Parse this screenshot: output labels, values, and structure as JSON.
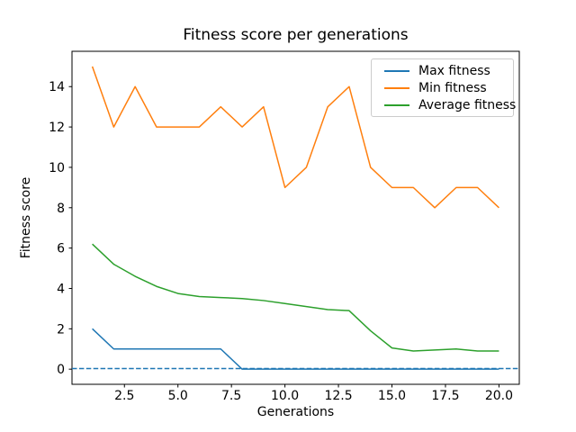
{
  "chart_data": {
    "type": "line",
    "title": "Fitness score per generations",
    "xlabel": "Generations",
    "ylabel": "Fitness score",
    "x": [
      1,
      2,
      3,
      4,
      5,
      6,
      7,
      8,
      9,
      10,
      11,
      12,
      13,
      14,
      15,
      16,
      17,
      18,
      19,
      20
    ],
    "series": [
      {
        "name": "Max fitness",
        "color": "#1f77b4",
        "style": "solid",
        "values": [
          2,
          1,
          1,
          1,
          1,
          1,
          1,
          0,
          0,
          0,
          0,
          0,
          0,
          0,
          0,
          0,
          0,
          0,
          0,
          0
        ]
      },
      {
        "name": "Min fitness",
        "color": "#ff7f0e",
        "style": "solid",
        "values": [
          15,
          12,
          14,
          12,
          12,
          12,
          13,
          12,
          13,
          9,
          10,
          13,
          14,
          10,
          9,
          9,
          8,
          9,
          9,
          8
        ]
      },
      {
        "name": "Average fitness",
        "color": "#2ca02c",
        "style": "solid",
        "values": [
          6.2,
          5.2,
          4.6,
          4.1,
          3.75,
          3.6,
          3.55,
          3.5,
          3.4,
          3.25,
          3.1,
          2.95,
          2.9,
          1.9,
          1.05,
          0.9,
          0.95,
          1.0,
          0.9,
          0.9
        ]
      }
    ],
    "reference_lines": [
      {
        "y": 0,
        "color": "#1f77b4",
        "style": "dashed"
      }
    ],
    "x_ticks": {
      "values": [
        2.5,
        5.0,
        7.5,
        10.0,
        12.5,
        15.0,
        17.5,
        20.0
      ],
      "labels": [
        "2.5",
        "5.0",
        "7.5",
        "10.0",
        "12.5",
        "15.0",
        "17.5",
        "20.0"
      ]
    },
    "y_ticks": {
      "values": [
        0,
        2,
        4,
        6,
        8,
        10,
        12,
        14
      ],
      "labels": [
        "0",
        "2",
        "4",
        "6",
        "8",
        "10",
        "12",
        "14"
      ]
    },
    "xlim": [
      0.05,
      20.95
    ],
    "ylim": [
      -0.75,
      15.75
    ],
    "grid": false,
    "legend": {
      "position": "upper right",
      "entries": [
        "Max fitness",
        "Min fitness",
        "Average fitness"
      ]
    },
    "colors": {
      "axes_frame": "#000000",
      "tick_text": "#000000",
      "legend_border": "#cccccc"
    }
  }
}
